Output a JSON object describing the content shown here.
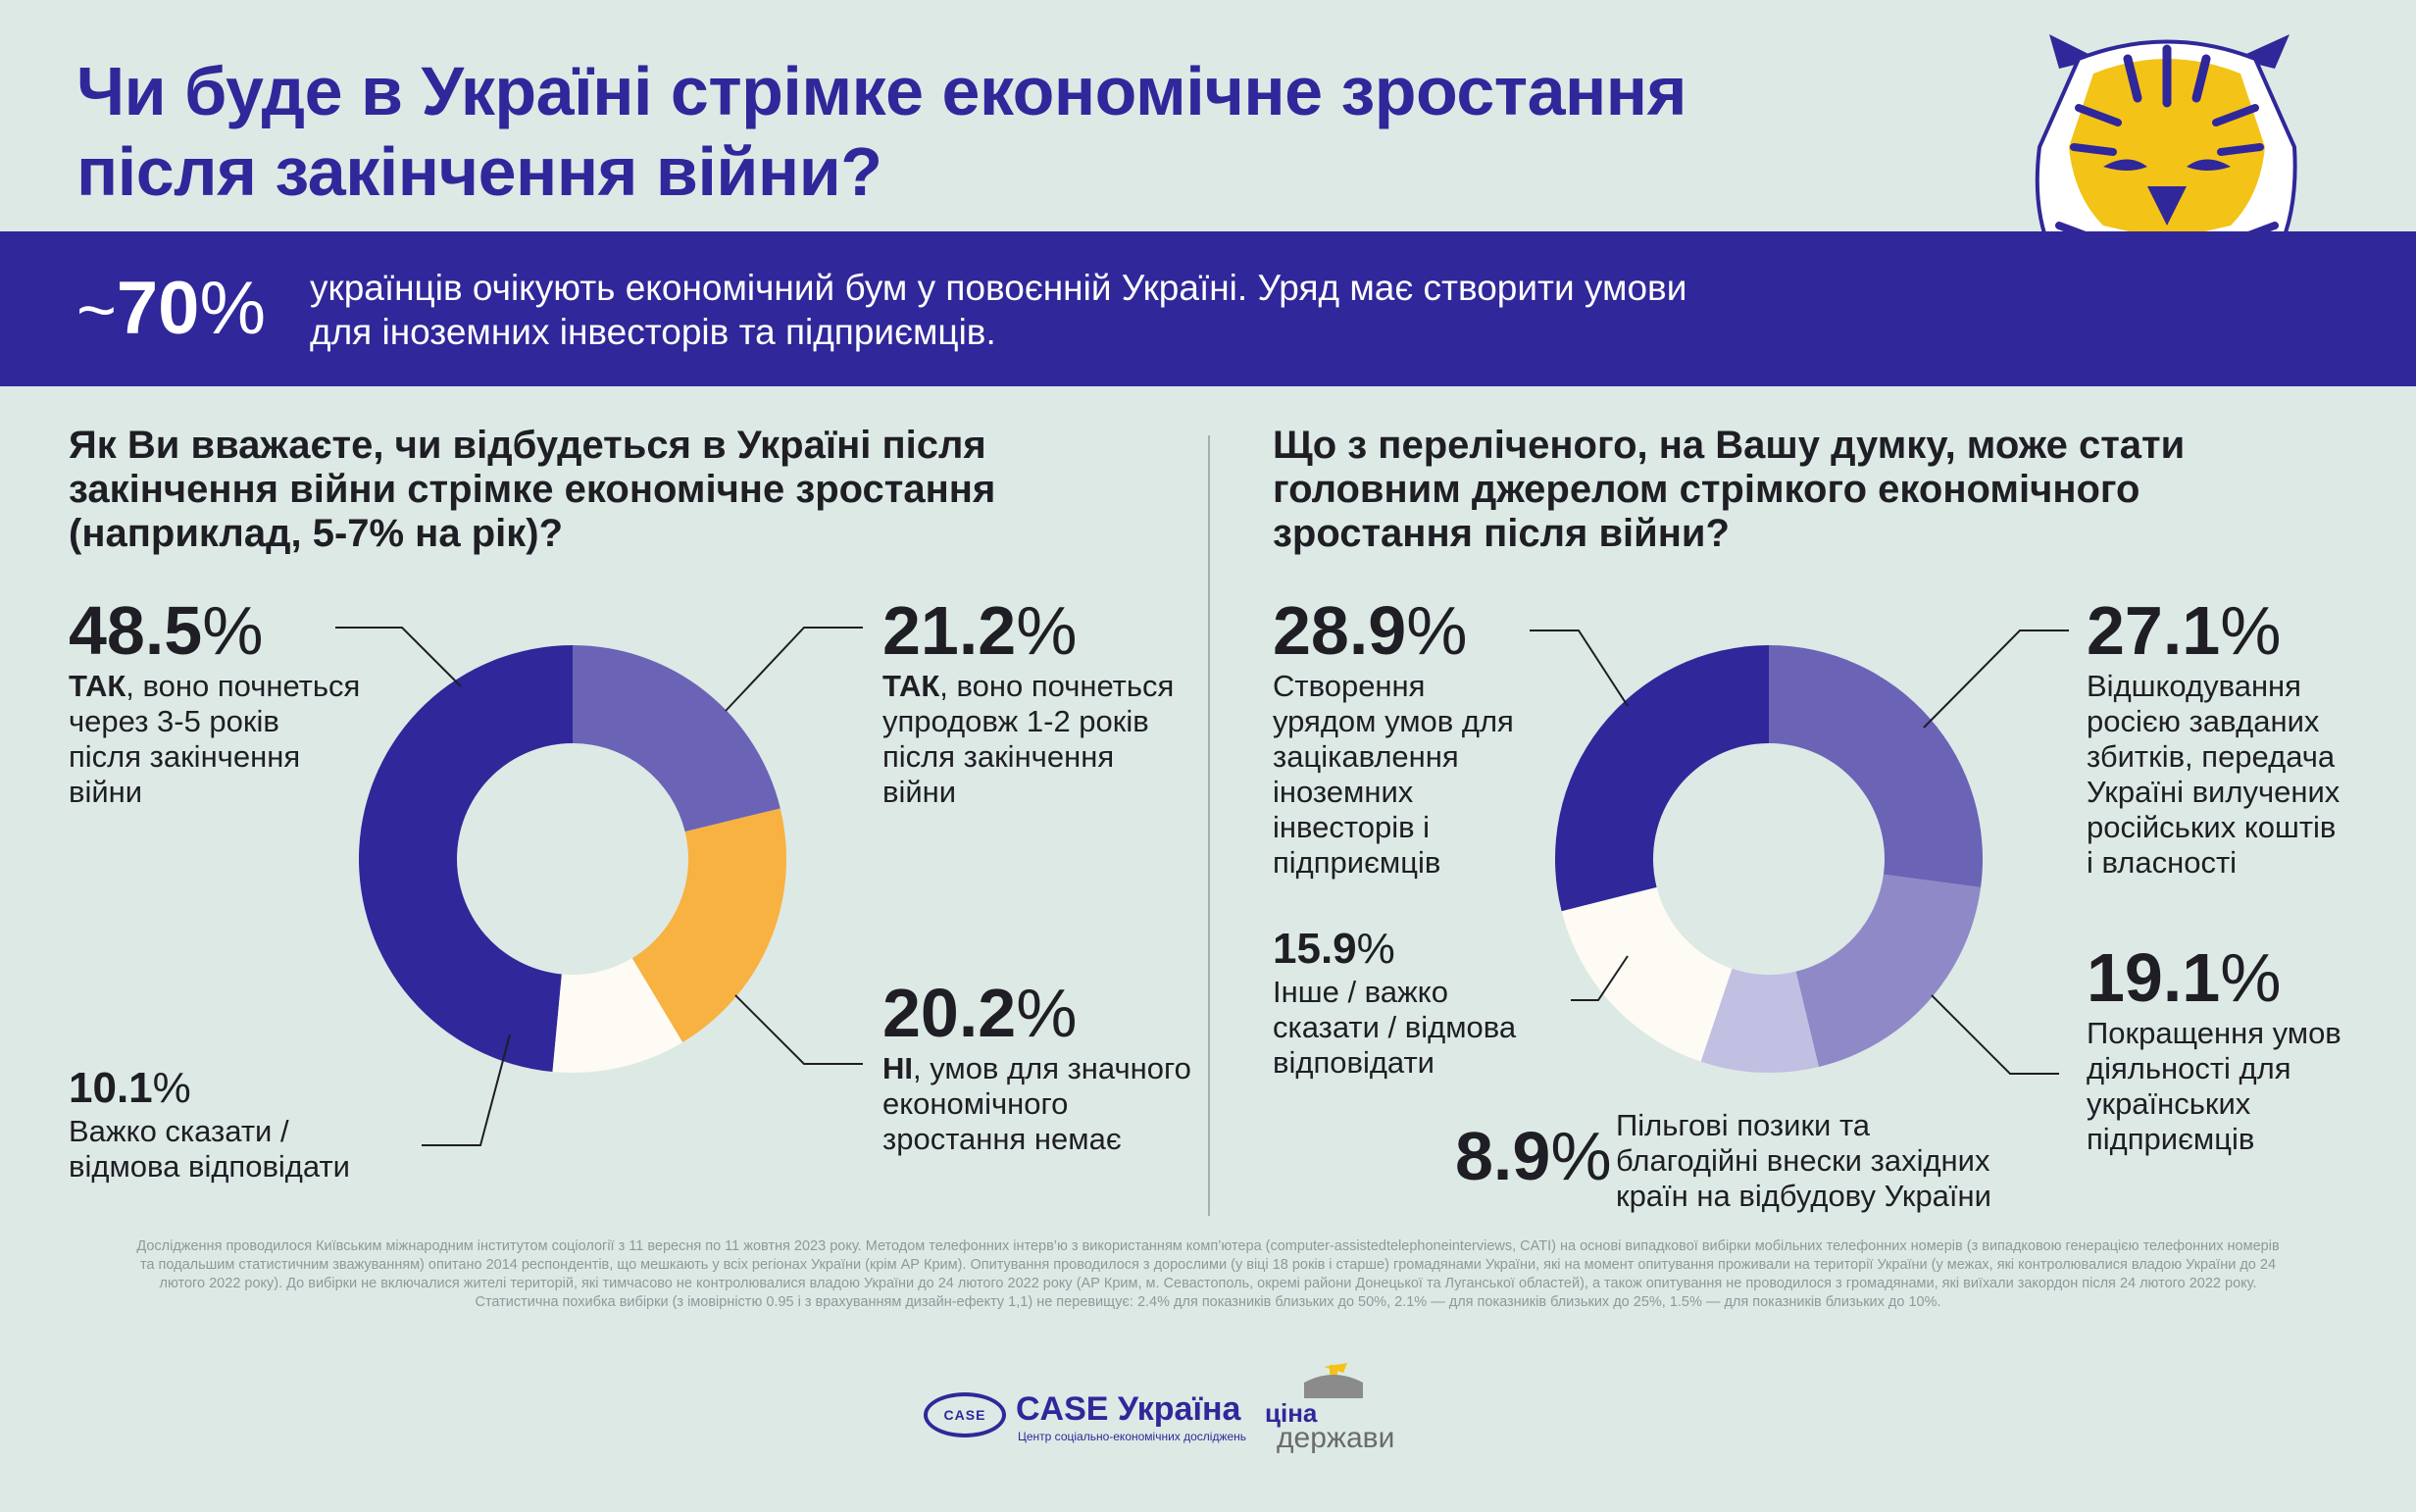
{
  "title": {
    "line1": "Чи буде в Україні стрімке економічне зростання",
    "line2": "після закінчення війни?"
  },
  "banner": {
    "tilde": "~",
    "value": "70",
    "percent": "%",
    "line1": "українців очікують економічний бум у повоєнній Україні. Уряд має створити умови",
    "line2": "для іноземних інвесторів та підприємців."
  },
  "question1": {
    "line1": "Як Ви вважаєте, чи відбудеться в Україні після",
    "line2": "закінчення війни стрімке економічне зростання",
    "line3": "(наприклад, 5-7% на рік)?"
  },
  "question2": {
    "line1": "Що з переліченого, на Вашу думку, може стати",
    "line2": "головним джерелом стрімкого економічного",
    "line3": "зростання після війни?"
  },
  "labels1": {
    "a": {
      "value": "48.5",
      "pct": "%",
      "bold": "ТАК",
      "rest": ", воно почнеться",
      "l2": "через 3-5 років",
      "l3": "після закінчення",
      "l4": "війни"
    },
    "b": {
      "value": "21.2",
      "pct": "%",
      "bold": "ТАК",
      "rest": ", воно почнеться",
      "l2": "упродовж 1-2 років",
      "l3": "після закінчення",
      "l4": "війни"
    },
    "c": {
      "value": "20.2",
      "pct": "%",
      "bold": "НІ",
      "rest": ", умов для значного",
      "l2": "економічного",
      "l3": "зростання немає"
    },
    "d": {
      "value": "10.1",
      "pct": "%",
      "l1": "Важко сказати /",
      "l2": "відмова відповідати"
    }
  },
  "labels2": {
    "a": {
      "value": "28.9",
      "pct": "%",
      "l1": "Створення",
      "l2": "урядом умов для",
      "l3": "зацікавлення",
      "l4": "іноземних",
      "l5": "інвесторів і",
      "l6": "підприємців"
    },
    "b": {
      "value": "27.1",
      "pct": "%",
      "l1": "Відшкодування",
      "l2": "росією завданих",
      "l3": "збитків, передача",
      "l4": "Україні вилучених",
      "l5": "російських коштів",
      "l6": "і власності"
    },
    "c": {
      "value": "19.1",
      "pct": "%",
      "l1": "Покращення умов",
      "l2": "діяльності для",
      "l3": "українських",
      "l4": "підприємців"
    },
    "d": {
      "value": "8.9",
      "pct": "%",
      "l1": "Пільгові позики та",
      "l2": "благодійні внески західних",
      "l3": "країн на відбудову України"
    },
    "e": {
      "value": "15.9",
      "pct": "%",
      "l1": "Інше / важко",
      "l2": "сказати / відмова",
      "l3": "відповідати"
    }
  },
  "chart_data": [
    {
      "type": "pie",
      "donut": true,
      "categories": [
        "ТАК, воно почнеться через 3-5 років після закінчення війни",
        "ТАК, воно почнеться упродовж 1-2 років після закінчення війни",
        "НІ, умов для значного економічного зростання немає",
        "Важко сказати / відмова відповідати"
      ],
      "values": [
        48.5,
        21.2,
        20.2,
        10.1
      ],
      "colors": [
        "#30279a",
        "#6b63b6",
        "#f8b242",
        "#fdfbf3"
      ],
      "start": "top, clockwise (first slice ends at top)"
    },
    {
      "type": "pie",
      "donut": true,
      "categories": [
        "Відшкодування росією завданих збитків, передача Україні вилучених російських коштів і власності",
        "Покращення умов діяльності для українських підприємців",
        "Пільгові позики та благодійні внески західних країн на відбудову України",
        "Інше / важко сказати / відмова відповідати",
        "Створення урядом умов для зацікавлення іноземних інвесторів і підприємців"
      ],
      "values": [
        27.1,
        19.1,
        8.9,
        15.9,
        28.9
      ],
      "colors": [
        "#6b63b6",
        "#8f89c7",
        "#c1bfe2",
        "#fdfbf3",
        "#30279a"
      ],
      "start": "top, clockwise"
    }
  ],
  "footnote": {
    "l1": "Дослідження проводилося Київським міжнародним інститутом соціології з 11 вересня по 11 жовтня 2023 року. Методом телефонних інтерв’ю з використанням комп’ютера (computer-assistedtelephoneinterviews, CATI) на основі випадкової вибірки мобільних телефонних номерів (з випадковою генерацією телефонних номерів",
    "l2": "та подальшим статистичним зважуванням) опитано 2014 респондентів, що мешкають у всіх регіонах України (крім АР Крим). Опитування проводилося з дорослими (у віці 18 років і старше) громадянами України, які на момент опитування проживали на території України (у межах, які контролювалися владою України до 24",
    "l3": "лютого 2022 року). До вибірки не включалися жителі територій, які тимчасово не контролювалися владою України до 24 лютого 2022 року (АР Крим, м. Севастополь, окремі райони Донецької та Луганської областей), а також опитування не проводилося з громадянами, які виїхали закордон після 24 лютого 2022 року.",
    "l4": "Статистична похибка вибірки (з імовірністю 0.95 і з врахуванням дизайн-ефекту 1,1) не перевищує: 2.4% для показників близьких до 50%, 2.1% — для показників близьких до 25%, 1.5% — для показників близьких до 10%."
  },
  "logos": {
    "case_badge": "CASE",
    "case_name": "CASE Україна",
    "case_sub": "Центр соціально-економічних досліджень",
    "cina_top": "ціна",
    "cina_bottom": "держави"
  },
  "colors": {
    "background": "#dde9e5",
    "primary": "#30279a",
    "orange": "#f8b242",
    "light": "#fdfbf3"
  },
  "icons": {
    "mascot": "tiger-head-icon"
  }
}
